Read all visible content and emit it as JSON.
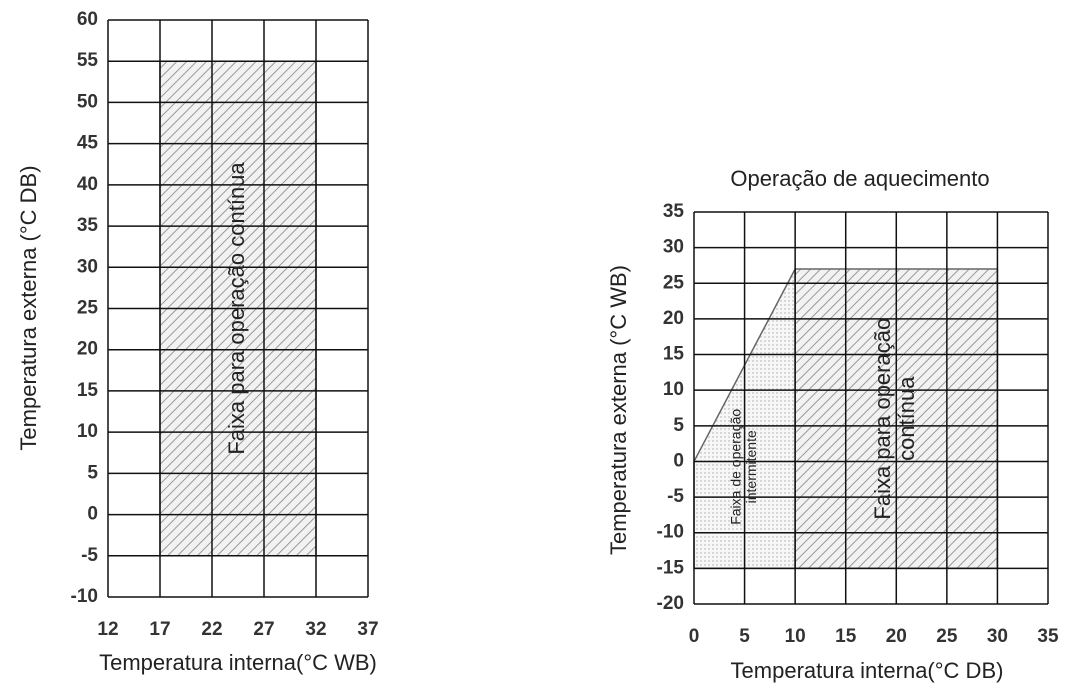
{
  "chart_data": [
    {
      "type": "area",
      "x_label": "Temperatura interna(°C WB)",
      "y_label": "Temperatura externa (°C DB)",
      "xlim": [
        12,
        37
      ],
      "xticks": [
        12,
        17,
        22,
        27,
        32,
        37
      ],
      "ylim": [
        -10,
        60
      ],
      "yticks": [
        -10,
        -5,
        0,
        5,
        10,
        15,
        20,
        25,
        30,
        35,
        40,
        45,
        50,
        55,
        60
      ],
      "grid": true,
      "regions": [
        {
          "label": [
            "Faixa para operação contínua"
          ],
          "pattern": "hatch",
          "x": [
            17,
            32,
            32,
            17
          ],
          "y": [
            55,
            55,
            -5,
            -5
          ]
        }
      ]
    },
    {
      "type": "area",
      "title": "Operação de aquecimento",
      "x_label": "Temperatura interna(°C DB)",
      "y_label": "Temperatura externa (°C WB)",
      "xlim": [
        0,
        35
      ],
      "xticks": [
        0,
        5,
        10,
        15,
        20,
        25,
        30,
        35
      ],
      "ylim": [
        -20,
        35
      ],
      "yticks": [
        -20,
        -15,
        -10,
        -5,
        0,
        5,
        10,
        15,
        20,
        25,
        30,
        35
      ],
      "grid": true,
      "regions": [
        {
          "label": [
            "Faixa de operação",
            "intermitente"
          ],
          "pattern": "dots",
          "x": [
            0,
            10,
            10,
            0
          ],
          "y": [
            0,
            27,
            -15,
            -15
          ]
        },
        {
          "label": [
            "Faixa para operação",
            "contínua"
          ],
          "pattern": "hatch",
          "x": [
            10,
            30,
            30,
            10
          ],
          "y": [
            27,
            27,
            -15,
            -15
          ]
        }
      ]
    }
  ]
}
